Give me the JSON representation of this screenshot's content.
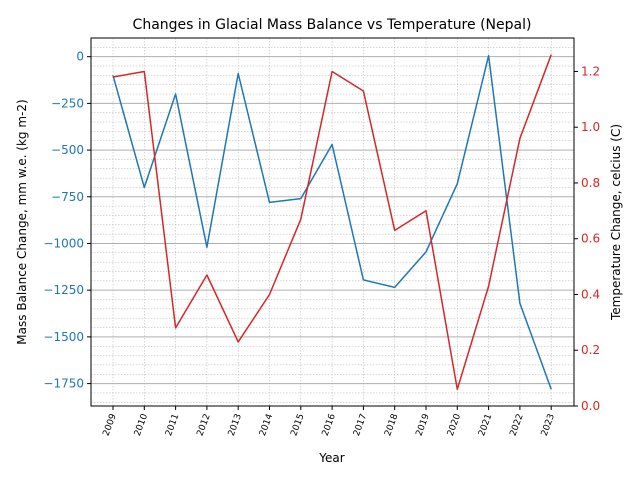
{
  "chart_data": {
    "type": "line",
    "title": "Changes in Glacial Mass Balance vs Temperature (Nepal)",
    "xlabel": "Year",
    "ylabel": "Mass Balance Change, mm w.e. (kg m-2)",
    "y2label": "Temperature Change, celcius (C)",
    "x": [
      "2009",
      "2010",
      "2011",
      "2012",
      "2013",
      "2014",
      "2015",
      "2016",
      "2017",
      "2018",
      "2019",
      "2020",
      "2021",
      "2022",
      "2023"
    ],
    "ylim": [
      -1870,
      100
    ],
    "y2lim": [
      0.0,
      1.32
    ],
    "yticks": [
      "0",
      "−250",
      "−500",
      "−750",
      "−1000",
      "−1250",
      "−1500",
      "−1750"
    ],
    "y2ticks": [
      "0.0",
      "0.2",
      "0.4",
      "0.6",
      "0.8",
      "1.0",
      "1.2"
    ],
    "grid": true,
    "series": [
      {
        "axis": "left",
        "color": "#1f77b4",
        "values": [
          -100,
          -700,
          -200,
          -1020,
          -90,
          -780,
          -760,
          -470,
          -1195,
          -1235,
          -1045,
          -680,
          5,
          -1320,
          -1780
        ]
      },
      {
        "axis": "right",
        "color": "#d62728",
        "values": [
          1.18,
          1.2,
          0.28,
          0.47,
          0.23,
          0.4,
          0.67,
          1.2,
          1.13,
          0.63,
          0.7,
          0.06,
          0.43,
          0.96,
          1.26
        ]
      }
    ]
  }
}
